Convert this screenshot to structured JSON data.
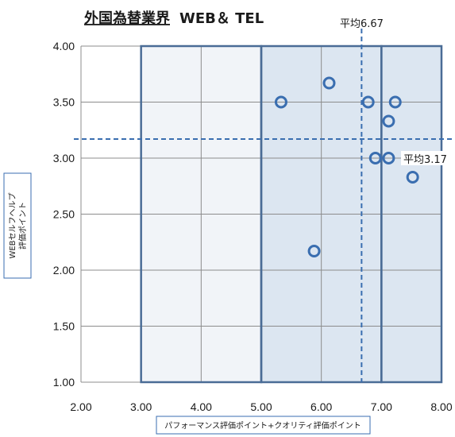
{
  "colors": {
    "band_fill": "#dce6f1",
    "band_border": "#4a6c96",
    "marker": "#3a6eb0",
    "avg_line": "#3a6eb0",
    "grid": "#8c8c8c"
  },
  "chart_data": {
    "type": "scatter",
    "title_underlined": "外国為替業界",
    "title_rest": "WEB＆ TEL",
    "xlabel": "パフォーマンス評価ポイント+クオリティ評価ポイント",
    "ylabel_lines": [
      "WEBセルフヘルプ",
      "評価ポイント"
    ],
    "xlim": [
      2.0,
      8.0
    ],
    "ylim": [
      1.0,
      4.0
    ],
    "x_ticks": [
      "2.00",
      "3.00",
      "4.00",
      "5.00",
      "6.00",
      "7.00",
      "8.00"
    ],
    "y_ticks": [
      "1.00",
      "1.50",
      "2.00",
      "2.50",
      "3.00",
      "3.50",
      "4.00"
    ],
    "grid": true,
    "bands": [
      {
        "x0": 3.0,
        "x1": 5.0,
        "shade": "light"
      },
      {
        "x0": 5.0,
        "x1": 7.0,
        "shade": "medium"
      },
      {
        "x0": 7.0,
        "x1": 8.0,
        "shade": "medium"
      }
    ],
    "average_x": {
      "value": 6.67,
      "label": "平均6.67"
    },
    "average_y": {
      "value": 3.17,
      "label": "平均3.17"
    },
    "points": [
      {
        "x": 5.33,
        "y": 3.5
      },
      {
        "x": 6.13,
        "y": 3.67
      },
      {
        "x": 6.78,
        "y": 3.5
      },
      {
        "x": 7.23,
        "y": 3.5
      },
      {
        "x": 7.12,
        "y": 3.33
      },
      {
        "x": 6.9,
        "y": 3.0
      },
      {
        "x": 7.12,
        "y": 3.0
      },
      {
        "x": 7.52,
        "y": 2.83
      },
      {
        "x": 5.88,
        "y": 2.17
      }
    ]
  }
}
